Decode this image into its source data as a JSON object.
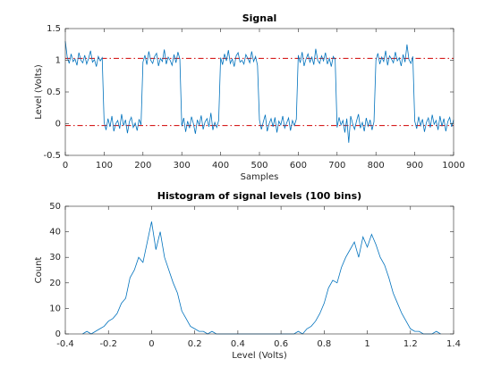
{
  "chart_data": [
    {
      "type": "line",
      "title": "Signal",
      "xlabel": "Samples",
      "ylabel": "Level (Volts)",
      "xlim": [
        0,
        1000
      ],
      "xticks": [
        0,
        100,
        200,
        300,
        400,
        500,
        600,
        700,
        800,
        900,
        1000
      ],
      "ylim": [
        -0.5,
        1.5
      ],
      "yticks": [
        -0.5,
        0,
        0.5,
        1,
        1.5
      ],
      "color": "#0072bd",
      "reference_lines": [
        {
          "value": 1.03,
          "color": "#d00000",
          "style": "dashdot"
        },
        {
          "value": -0.03,
          "color": "#d00000",
          "style": "dashdot"
        }
      ],
      "x": [
        0,
        5,
        10,
        15,
        20,
        25,
        30,
        35,
        40,
        45,
        50,
        55,
        60,
        65,
        70,
        75,
        80,
        85,
        90,
        95,
        100,
        105,
        110,
        115,
        120,
        125,
        130,
        135,
        140,
        145,
        150,
        155,
        160,
        165,
        170,
        175,
        180,
        185,
        190,
        195,
        200,
        205,
        210,
        215,
        220,
        225,
        230,
        235,
        240,
        245,
        250,
        255,
        260,
        265,
        270,
        275,
        280,
        285,
        290,
        295,
        300,
        305,
        310,
        315,
        320,
        325,
        330,
        335,
        340,
        345,
        350,
        355,
        360,
        365,
        370,
        375,
        380,
        385,
        390,
        395,
        400,
        405,
        410,
        415,
        420,
        425,
        430,
        435,
        440,
        445,
        450,
        455,
        460,
        465,
        470,
        475,
        480,
        485,
        490,
        495,
        500,
        505,
        510,
        515,
        520,
        525,
        530,
        535,
        540,
        545,
        550,
        555,
        560,
        565,
        570,
        575,
        580,
        585,
        590,
        595,
        600,
        605,
        610,
        615,
        620,
        625,
        630,
        635,
        640,
        645,
        650,
        655,
        660,
        665,
        670,
        675,
        680,
        685,
        690,
        695,
        700,
        705,
        710,
        715,
        720,
        725,
        730,
        735,
        740,
        745,
        750,
        755,
        760,
        765,
        770,
        775,
        780,
        785,
        790,
        795,
        800,
        805,
        810,
        815,
        820,
        825,
        830,
        835,
        840,
        845,
        850,
        855,
        860,
        865,
        870,
        875,
        880,
        885,
        890,
        895,
        900,
        905,
        910,
        915,
        920,
        925,
        930,
        935,
        940,
        945,
        950,
        955,
        960,
        965,
        970,
        975,
        980,
        985,
        990,
        995,
        1000
      ],
      "values": [
        1.3,
        1.05,
        0.95,
        1.1,
        0.98,
        1.02,
        0.92,
        1.12,
        1.0,
        0.96,
        1.08,
        0.94,
        1.03,
        1.15,
        0.97,
        1.01,
        0.9,
        1.06,
        0.99,
        1.04,
        0.02,
        -0.1,
        0.08,
        -0.05,
        0.12,
        -0.12,
        0.0,
        0.05,
        -0.08,
        0.15,
        -0.03,
        0.06,
        -0.15,
        0.03,
        0.1,
        -0.06,
        0.01,
        -0.11,
        0.07,
        -0.02,
        0.97,
        1.08,
        0.93,
        1.14,
        1.0,
        0.95,
        1.06,
        1.11,
        0.91,
        1.03,
        0.98,
        1.17,
        0.94,
        1.05,
        1.0,
        0.92,
        1.09,
        0.96,
        1.13,
        1.02,
        -0.04,
        0.09,
        -0.13,
        0.04,
        -0.07,
        0.11,
        0.0,
        -0.16,
        0.06,
        -0.02,
        0.13,
        -0.09,
        0.03,
        0.08,
        -0.05,
        0.17,
        -0.1,
        0.02,
        -0.06,
        0.05,
        1.04,
        0.93,
        1.1,
        0.99,
        1.16,
        0.95,
        1.02,
        0.9,
        1.07,
        1.12,
        0.97,
        1.0,
        0.94,
        1.09,
        1.03,
        0.96,
        1.14,
        0.98,
        1.06,
        0.92,
        0.06,
        -0.09,
        0.03,
        0.14,
        -0.12,
        0.0,
        0.08,
        -0.05,
        0.1,
        -0.14,
        0.04,
        -0.02,
        0.12,
        -0.07,
        0.01,
        0.09,
        -0.11,
        0.05,
        -0.03,
        0.07,
        1.08,
        0.96,
        1.13,
        0.91,
        1.02,
        1.1,
        0.97,
        1.05,
        0.93,
        1.18,
        1.0,
        0.95,
        1.07,
        0.99,
        1.12,
        0.94,
        1.03,
        0.9,
        1.06,
        1.01,
        -0.06,
        0.1,
        -0.02,
        0.05,
        -0.14,
        0.08,
        -0.3,
        0.12,
        0.0,
        -0.09,
        0.04,
        0.15,
        -0.07,
        0.02,
        -0.12,
        0.09,
        -0.04,
        0.06,
        -0.1,
        0.03,
        1.0,
        1.11,
        0.94,
        1.05,
        0.98,
        1.15,
        0.92,
        1.07,
        1.02,
        0.96,
        1.13,
        0.99,
        1.04,
        0.91,
        1.09,
        0.97,
        1.25,
        1.01,
        0.95,
        1.06,
        0.04,
        -0.08,
        0.11,
        -0.03,
        0.07,
        -0.13,
        0.02,
        0.09,
        -0.06,
        0.14,
        -0.01,
        0.05,
        -0.1,
        0.12,
        -0.04,
        0.08,
        -0.12,
        0.03,
        0.1,
        -0.05,
        0.06
      ]
    },
    {
      "type": "line",
      "title": "Histogram of signal levels (100 bins)",
      "xlabel": "Level (Volts)",
      "ylabel": "Count",
      "xlim": [
        -0.4,
        1.4
      ],
      "xticks": [
        -0.4,
        -0.2,
        0,
        0.2,
        0.4,
        0.6,
        0.8,
        1,
        1.2,
        1.4
      ],
      "ylim": [
        0,
        50
      ],
      "yticks": [
        0,
        10,
        20,
        30,
        40,
        50
      ],
      "color": "#0072bd",
      "x": [
        -0.32,
        -0.3,
        -0.28,
        -0.26,
        -0.24,
        -0.22,
        -0.2,
        -0.18,
        -0.16,
        -0.14,
        -0.12,
        -0.1,
        -0.08,
        -0.06,
        -0.04,
        -0.02,
        0.0,
        0.02,
        0.04,
        0.06,
        0.08,
        0.1,
        0.12,
        0.14,
        0.16,
        0.18,
        0.2,
        0.22,
        0.24,
        0.26,
        0.28,
        0.3,
        0.32,
        0.34,
        0.36,
        0.38,
        0.4,
        0.42,
        0.44,
        0.46,
        0.48,
        0.5,
        0.52,
        0.54,
        0.56,
        0.58,
        0.6,
        0.62,
        0.64,
        0.66,
        0.68,
        0.7,
        0.72,
        0.74,
        0.76,
        0.78,
        0.8,
        0.82,
        0.84,
        0.86,
        0.88,
        0.9,
        0.92,
        0.94,
        0.96,
        0.98,
        1.0,
        1.02,
        1.04,
        1.06,
        1.08,
        1.1,
        1.12,
        1.14,
        1.16,
        1.18,
        1.2,
        1.22,
        1.24,
        1.26,
        1.28,
        1.3,
        1.32,
        1.34
      ],
      "values": [
        0,
        1,
        0,
        1,
        2,
        3,
        5,
        6,
        8,
        12,
        14,
        22,
        25,
        30,
        28,
        36,
        44,
        33,
        40,
        30,
        25,
        20,
        16,
        9,
        6,
        3,
        2,
        1,
        1,
        0,
        1,
        0,
        0,
        0,
        0,
        0,
        0,
        0,
        0,
        0,
        0,
        0,
        0,
        0,
        0,
        0,
        0,
        0,
        0,
        0,
        1,
        0,
        2,
        3,
        5,
        8,
        12,
        18,
        21,
        20,
        26,
        30,
        33,
        36,
        30,
        38,
        34,
        39,
        35,
        30,
        27,
        22,
        16,
        12,
        8,
        5,
        2,
        1,
        1,
        0,
        0,
        0,
        1,
        0
      ]
    }
  ]
}
